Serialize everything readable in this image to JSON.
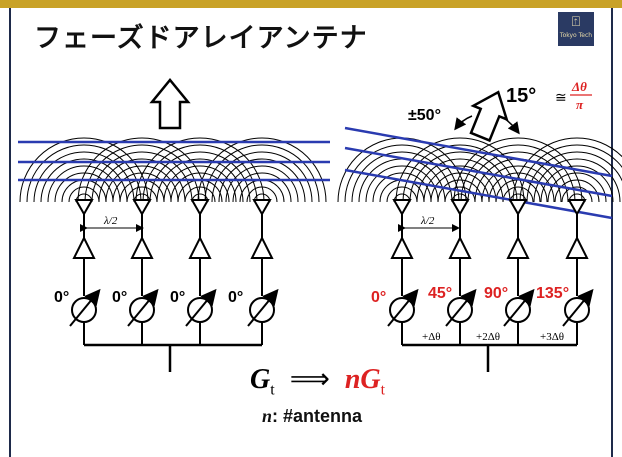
{
  "slide": {
    "title": "フェーズドアレイアンテナ",
    "logo_text": "Tokyo Tech"
  },
  "left_array": {
    "spacing_label": "λ/2",
    "phase_labels": [
      "0°",
      "0°",
      "0°",
      "0°"
    ]
  },
  "right_array": {
    "spacing_label": "λ/2",
    "phase_labels": [
      "0°",
      "45°",
      "90°",
      "135°"
    ],
    "phase_increments": [
      "+Δθ",
      "+2Δθ",
      "+3Δθ"
    ],
    "steer_range": "±50°",
    "step_angle": "15°",
    "approx_symbol": "≅",
    "fraction_num": "Δθ",
    "fraction_den": "π"
  },
  "formula": {
    "lhs": "G",
    "lhs_sub": "t",
    "arrow": "⟹",
    "rhs": "nG",
    "rhs_sub": "t"
  },
  "footnote": {
    "var": "n",
    "text": ": #antenna"
  },
  "colors": {
    "wavefront": "#2a3bb0",
    "accent_red": "#dd2222",
    "gold": "#c9a227",
    "navy": "#2a3a63"
  }
}
